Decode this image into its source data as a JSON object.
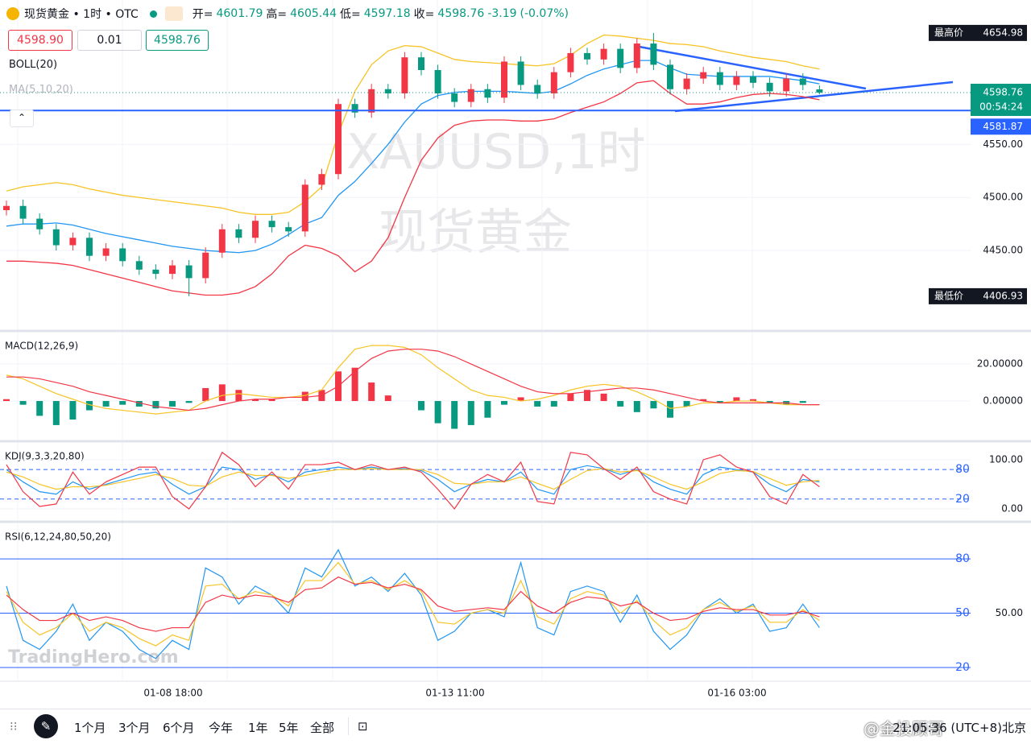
{
  "header": {
    "title": "现货黄金 • 1时 • OTC",
    "open_label": "开=",
    "high_label": "高=",
    "low_label": "低=",
    "close_label": "收=",
    "change": "-3.19",
    "change_pct": "(-0.07%)",
    "sell": "4598.90",
    "qty": "0.01",
    "buy": "4598.76",
    "watermark_1": "XAUUSD,1时",
    "watermark_2": "现货黄金",
    "brand": "TradingHero.com"
  },
  "toolbar": {
    "ranges": [
      "1个月",
      "3个月",
      "6个月",
      "今年",
      "1年",
      "5年",
      "全部"
    ],
    "clock": "21:05:36 (UTC+8)北京",
    "credit": "@金投顾哥"
  },
  "chart_data": [
    {
      "type": "candlestick",
      "title": "BOLL(20)",
      "subtitle": "MA(5,10,20)",
      "up_color": "#f23645",
      "down_color": "#089981",
      "open": [
        4488,
        4492,
        4480,
        4470,
        4455,
        4462,
        4445,
        4452,
        4440,
        4432,
        4428,
        4436,
        4424,
        4448,
        4470,
        4462,
        4478,
        4472,
        4468,
        4512,
        4522,
        4588,
        4580,
        4602,
        4598,
        4632,
        4620,
        4598,
        4590,
        4602,
        4594,
        4628,
        4606,
        4598,
        4618,
        4636,
        4630,
        4640,
        4622,
        4645,
        4625,
        4602,
        4612,
        4618,
        4606,
        4614,
        4608,
        4600,
        4612,
        4601.79
      ],
      "high": [
        4497,
        4498,
        4485,
        4475,
        4467,
        4467,
        4457,
        4457,
        4445,
        4437,
        4441,
        4441,
        4453,
        4475,
        4475,
        4483,
        4483,
        4477,
        4517,
        4527,
        4593,
        4593,
        4607,
        4607,
        4637,
        4637,
        4625,
        4603,
        4607,
        4607,
        4633,
        4633,
        4611,
        4623,
        4641,
        4641,
        4645,
        4645,
        4650,
        4654.98,
        4630,
        4617,
        4623,
        4623,
        4619,
        4619,
        4613,
        4617,
        4617,
        4605.44
      ],
      "low": [
        4483,
        4475,
        4465,
        4450,
        4450,
        4440,
        4440,
        4435,
        4427,
        4423,
        4423,
        4406.93,
        4419,
        4443,
        4457,
        4457,
        4467,
        4463,
        4463,
        4507,
        4517,
        4575,
        4575,
        4593,
        4593,
        4615,
        4593,
        4585,
        4585,
        4589,
        4589,
        4601,
        4593,
        4593,
        4613,
        4625,
        4625,
        4617,
        4617,
        4620,
        4597,
        4597,
        4607,
        4601,
        4601,
        4603,
        4595,
        4595,
        4601,
        4597.18
      ],
      "close": [
        4492,
        4480,
        4470,
        4455,
        4462,
        4445,
        4452,
        4440,
        4432,
        4428,
        4436,
        4424,
        4448,
        4470,
        4462,
        4478,
        4472,
        4468,
        4512,
        4522,
        4588,
        4580,
        4602,
        4598,
        4632,
        4620,
        4598,
        4590,
        4602,
        4594,
        4628,
        4606,
        4598,
        4618,
        4636,
        4630,
        4640,
        4622,
        4645,
        4625,
        4602,
        4612,
        4618,
        4606,
        4614,
        4608,
        4600,
        4612,
        4606,
        4598.76
      ],
      "overlays": [
        {
          "color": "#f7c325",
          "values": [
            4506,
            4510,
            4512,
            4514,
            4512,
            4508,
            4505,
            4502,
            4500,
            4498,
            4496,
            4494,
            4492,
            4490,
            4486,
            4484,
            4484,
            4486,
            4496,
            4510,
            4560,
            4600,
            4625,
            4638,
            4643,
            4642,
            4636,
            4630,
            4628,
            4627,
            4626,
            4625,
            4624,
            4626,
            4634,
            4645,
            4653,
            4652,
            4650,
            4648,
            4645,
            4644,
            4642,
            4638,
            4635,
            4632,
            4630,
            4628,
            4624,
            4621
          ]
        },
        {
          "color": "#2196f3",
          "values": [
            4473,
            4475,
            4475,
            4476,
            4474,
            4470,
            4466,
            4463,
            4460,
            4457,
            4454,
            4452,
            4450,
            4449,
            4448,
            4450,
            4456,
            4465,
            4475,
            4481,
            4502,
            4515,
            4532,
            4550,
            4571,
            4588,
            4596,
            4599,
            4600,
            4600,
            4600,
            4599,
            4598,
            4600,
            4607,
            4615,
            4621,
            4625,
            4629,
            4629,
            4622,
            4616,
            4615,
            4614,
            4614,
            4614,
            4614,
            4612,
            4610,
            4607
          ]
        },
        {
          "color": "#f23645",
          "values": [
            4440,
            4440,
            4439,
            4438,
            4436,
            4432,
            4428,
            4424,
            4420,
            4416,
            4412,
            4410,
            4408,
            4408,
            4410,
            4416,
            4428,
            4445,
            4455,
            4452,
            4445,
            4430,
            4440,
            4462,
            4500,
            4535,
            4556,
            4568,
            4572,
            4573,
            4573,
            4572,
            4572,
            4574,
            4580,
            4585,
            4590,
            4598,
            4608,
            4610,
            4598,
            4588,
            4588,
            4590,
            4594,
            4597,
            4598,
            4597,
            4595,
            4592
          ]
        }
      ],
      "ylim": [
        4375,
        4686
      ],
      "yticks": [
        {
          "value": 4450,
          "label": "4450.00"
        },
        {
          "value": 4500,
          "label": "4500.00"
        },
        {
          "value": 4550,
          "label": "4550.00"
        }
      ],
      "hline": 4581.87,
      "hline_color": "#2962ff",
      "high_label": "最高价",
      "low_label": "最低价",
      "countdown": "00:54:24",
      "time_labels": [
        "01-08 18:00",
        "01-13 11:00",
        "01-16 03:00"
      ]
    },
    {
      "type": "macd",
      "title": "MACD(12,26,9)",
      "up_color": "#f23645",
      "down_color": "#089981",
      "histogram": [
        1,
        -2,
        -8,
        -13,
        -10,
        -5,
        -3,
        -2,
        -3,
        -4,
        -3,
        -1,
        7,
        9,
        6,
        1,
        1,
        0,
        5,
        6,
        16,
        18,
        10,
        3,
        0,
        -5,
        -12,
        -15,
        -13,
        -9,
        -2,
        2,
        -3,
        -3,
        4,
        6,
        4,
        -3,
        -6,
        -4,
        -9,
        -3,
        1,
        -1,
        2,
        1,
        -1,
        -2,
        -1,
        0
      ],
      "series": [
        {
          "color": "#f7c325",
          "values": [
            14,
            12,
            8,
            4,
            1,
            -2,
            -4,
            -5,
            -6,
            -7,
            -6,
            -5,
            0,
            3,
            4,
            3,
            2,
            2,
            3,
            6,
            18,
            28,
            30,
            30,
            29,
            25,
            18,
            12,
            6,
            3,
            2,
            0,
            1,
            3,
            6,
            8,
            9,
            8,
            5,
            1,
            -4,
            -3,
            -1,
            -1,
            0,
            0,
            -1,
            -2,
            -2,
            -2
          ]
        },
        {
          "color": "#f23645",
          "values": [
            13,
            13,
            12,
            10,
            8,
            5,
            3,
            1,
            -1,
            -3,
            -4,
            -5,
            -4,
            -2,
            0,
            1,
            1,
            2,
            2,
            3,
            8,
            16,
            23,
            27,
            28,
            28,
            27,
            24,
            20,
            16,
            12,
            8,
            5,
            4,
            4,
            5,
            6,
            7,
            7,
            6,
            4,
            2,
            0,
            -1,
            -1,
            -1,
            -1,
            -1,
            -2,
            -2
          ]
        }
      ],
      "ylim": [
        -21.3,
        37
      ],
      "yticks": [
        {
          "value": 20,
          "label": "20.00000"
        },
        {
          "value": 0,
          "label": "0.00000"
        }
      ]
    },
    {
      "type": "line",
      "title": "KDJ(9,3,3,20,80)",
      "levels": [
        80,
        20
      ],
      "level_style": "dashed",
      "level_color": "#2962ff",
      "series": [
        {
          "color": "#2196f3",
          "values": [
            80,
            55,
            35,
            30,
            55,
            40,
            50,
            60,
            70,
            75,
            50,
            30,
            45,
            85,
            80,
            60,
            70,
            55,
            75,
            80,
            85,
            80,
            85,
            80,
            82,
            78,
            60,
            35,
            50,
            60,
            55,
            75,
            40,
            30,
            80,
            88,
            82,
            70,
            80,
            55,
            40,
            30,
            70,
            85,
            80,
            75,
            50,
            35,
            60,
            55
          ]
        },
        {
          "color": "#f7c325",
          "values": [
            75,
            65,
            50,
            40,
            45,
            45,
            48,
            55,
            62,
            70,
            62,
            48,
            46,
            65,
            75,
            68,
            68,
            62,
            68,
            75,
            80,
            80,
            82,
            80,
            80,
            80,
            70,
            52,
            50,
            55,
            55,
            65,
            52,
            40,
            60,
            78,
            82,
            75,
            78,
            65,
            50,
            40,
            55,
            72,
            78,
            76,
            62,
            48,
            55,
            58
          ]
        },
        {
          "color": "#f23645",
          "values": [
            90,
            35,
            5,
            10,
            75,
            30,
            55,
            70,
            85,
            85,
            25,
            0,
            45,
            115,
            90,
            45,
            75,
            40,
            90,
            90,
            95,
            80,
            90,
            80,
            85,
            75,
            40,
            0,
            50,
            70,
            55,
            95,
            15,
            10,
            115,
            110,
            82,
            60,
            85,
            35,
            20,
            10,
            100,
            110,
            85,
            75,
            25,
            10,
            70,
            45
          ]
        }
      ],
      "ylim": [
        -24.6,
        134.4
      ],
      "yticks": [
        {
          "value": 100,
          "label": "100.00"
        },
        {
          "value": 0,
          "label": "0.00"
        }
      ]
    },
    {
      "type": "line",
      "title": "RSI(6,12,24,80,50,20)",
      "levels": [
        80,
        50,
        20
      ],
      "level_style": "solid",
      "level_color": "#2962ff",
      "series": [
        {
          "color": "#2196f3",
          "values": [
            65,
            35,
            30,
            40,
            55,
            35,
            45,
            40,
            30,
            25,
            35,
            30,
            75,
            70,
            55,
            65,
            60,
            50,
            75,
            70,
            85,
            65,
            70,
            62,
            72,
            60,
            35,
            40,
            50,
            52,
            48,
            78,
            42,
            38,
            62,
            65,
            62,
            45,
            60,
            40,
            30,
            38,
            52,
            58,
            50,
            55,
            40,
            42,
            55,
            42
          ]
        },
        {
          "color": "#f7c325",
          "values": [
            62,
            45,
            38,
            42,
            50,
            40,
            45,
            42,
            36,
            32,
            38,
            35,
            65,
            66,
            58,
            62,
            60,
            54,
            68,
            68,
            78,
            66,
            68,
            63,
            68,
            62,
            45,
            44,
            50,
            52,
            50,
            68,
            48,
            44,
            58,
            62,
            60,
            50,
            57,
            46,
            38,
            42,
            52,
            56,
            51,
            54,
            45,
            45,
            52,
            46
          ]
        },
        {
          "color": "#f23645",
          "values": [
            60,
            52,
            46,
            46,
            50,
            46,
            48,
            46,
            42,
            40,
            42,
            42,
            56,
            60,
            58,
            60,
            59,
            56,
            63,
            64,
            70,
            66,
            67,
            64,
            66,
            63,
            54,
            51,
            52,
            53,
            52,
            62,
            54,
            50,
            56,
            59,
            58,
            54,
            56,
            50,
            46,
            47,
            51,
            53,
            52,
            52,
            49,
            49,
            51,
            48
          ]
        }
      ],
      "ylim": [
        12.9,
        99.6
      ],
      "yticks": [
        {
          "value": 50,
          "label": "50.00"
        }
      ]
    }
  ]
}
